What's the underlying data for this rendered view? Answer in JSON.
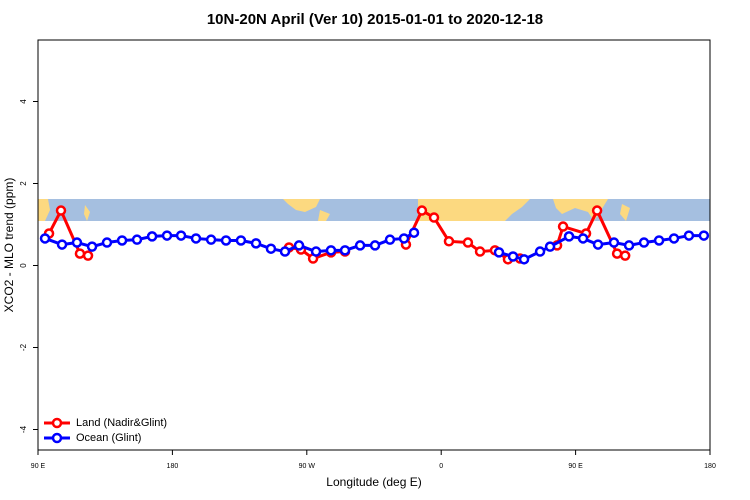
{
  "chart_data": {
    "type": "line",
    "title": "10N-20N April (Ver 10)   2015-01-01 to 2020-12-18",
    "xlabel": "Longitude (deg E)",
    "ylabel": "XCO2 - MLO trend (ppm)",
    "xlim": [
      90,
      540
    ],
    "xticks": [
      {
        "value": 90,
        "label": "90 E"
      },
      180,
      {
        "value": 270,
        "label": "90 W"
      },
      {
        "value": 360,
        "label": "0"
      },
      {
        "value": 450,
        "label": "90 E"
      },
      {
        "value": 540,
        "label": "180"
      }
    ],
    "ylim": [
      -4.5,
      5.5
    ],
    "yticks": [
      -4,
      -2,
      0,
      2,
      4
    ],
    "legend": "bottomleft",
    "series": [
      {
        "name": "Land (Nadir&Glint)",
        "color": "#ff0000",
        "x": [
          97.4,
          105.4,
          118.1,
          123.5,
          null,
          258.1,
          266.1,
          274.2,
          286.2,
          295.6,
          null,
          336.4,
          347.1,
          355.2,
          365.2,
          377.9,
          386.0,
          396.0,
          404.7,
          412.8,
          null,
          437.6,
          441.6,
          457.0,
          464.4,
          477.8,
          483.2
        ],
        "values": [
          0.78,
          1.34,
          0.29,
          0.24,
          null,
          0.44,
          0.39,
          0.17,
          0.32,
          0.34,
          null,
          0.51,
          1.34,
          1.17,
          0.59,
          0.56,
          0.34,
          0.37,
          0.15,
          0.17,
          null,
          0.49,
          0.95,
          0.78,
          1.34,
          0.29,
          0.24
        ]
      },
      {
        "name": "Ocean (Glint)",
        "color": "#0000ff",
        "x": [
          94.7,
          106.1,
          116.1,
          126.2,
          136.2,
          146.3,
          156.3,
          166.4,
          176.4,
          185.8,
          195.8,
          205.9,
          215.9,
          225.9,
          236.0,
          246.0,
          255.4,
          264.8,
          276.2,
          286.2,
          295.6,
          305.7,
          315.7,
          325.7,
          335.1,
          341.8,
          null,
          398.7,
          408.1,
          415.5,
          426.2,
          432.9,
          445.6,
          455.0,
          465.0,
          475.7,
          485.8,
          495.8,
          505.9,
          515.9,
          525.9,
          535.9
        ],
        "values": [
          0.66,
          0.51,
          0.56,
          0.46,
          0.56,
          0.61,
          0.63,
          0.71,
          0.73,
          0.73,
          0.66,
          0.63,
          0.61,
          0.61,
          0.54,
          0.41,
          0.34,
          0.49,
          0.34,
          0.37,
          0.37,
          0.49,
          0.49,
          0.63,
          0.66,
          0.8,
          null,
          0.32,
          0.22,
          0.15,
          0.34,
          0.46,
          0.71,
          0.66,
          0.51,
          0.56,
          0.49,
          0.56,
          0.61,
          0.66,
          0.73,
          0.73
        ]
      }
    ]
  }
}
